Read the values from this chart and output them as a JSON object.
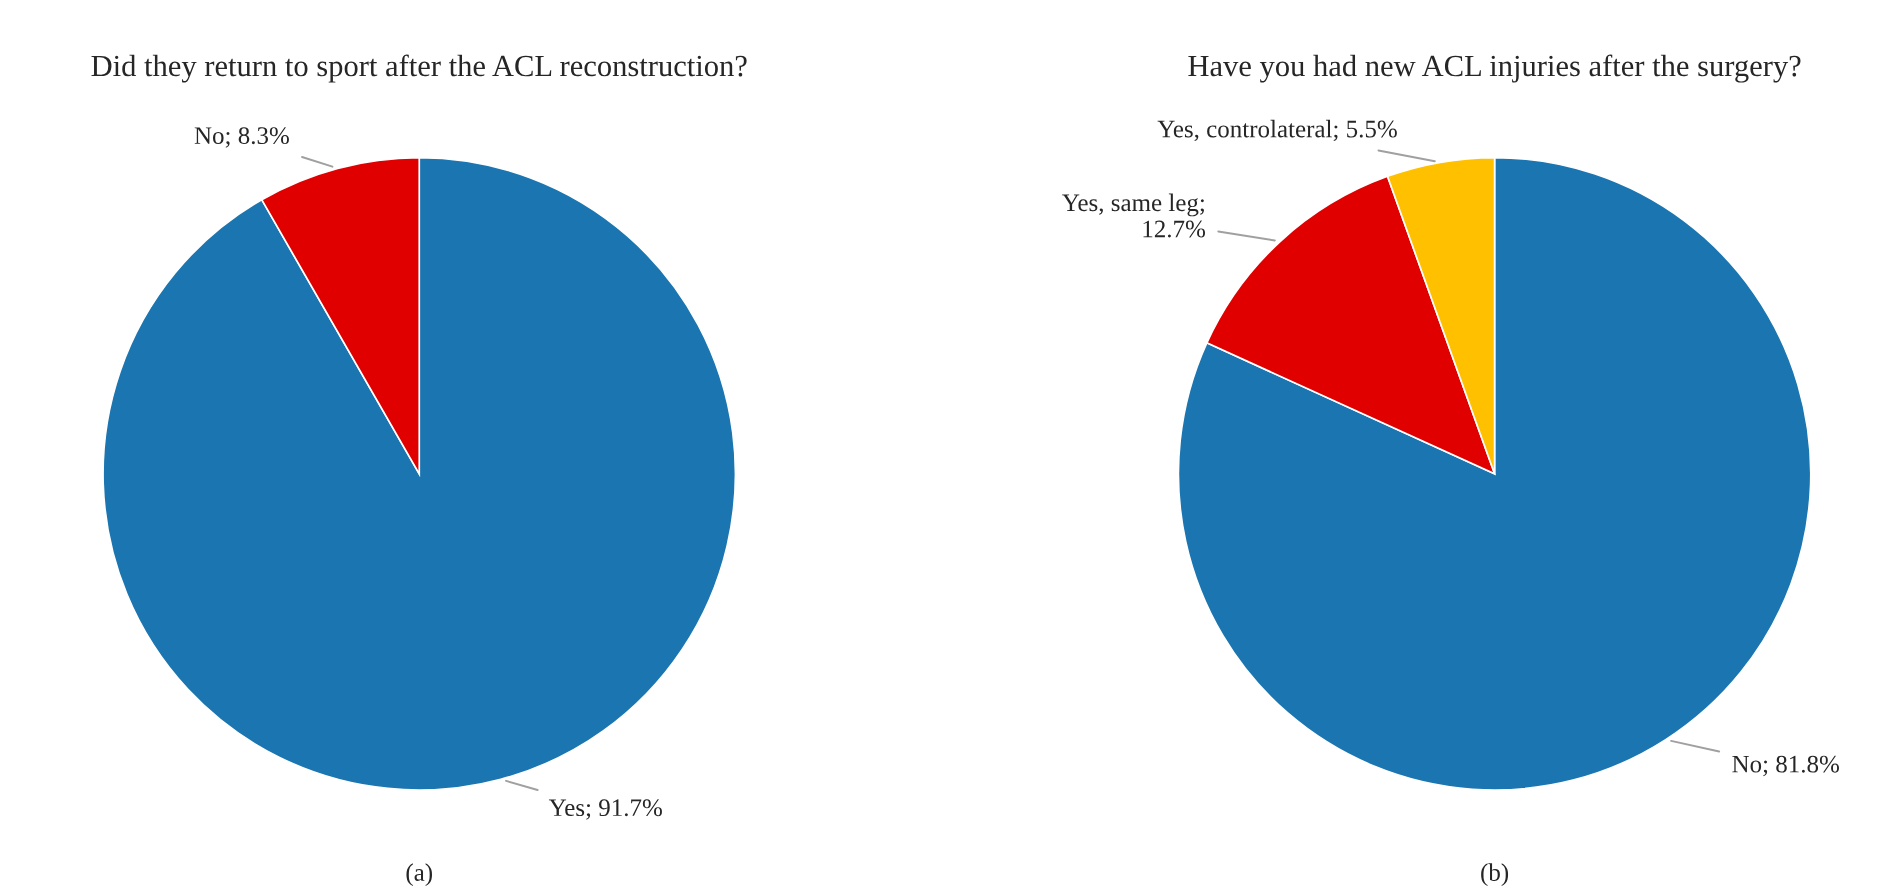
{
  "chart_data": [
    {
      "type": "pie",
      "title": "Did they return to sport after the ACL reconstruction?",
      "categories": [
        "Yes",
        "No"
      ],
      "values": [
        91.7,
        8.3
      ],
      "colors": [
        "#1a75b0",
        "#e00000"
      ],
      "value_labels": [
        "; 91.7%",
        "; 8.3%"
      ],
      "annotations": [
        "(a)"
      ]
    },
    {
      "type": "pie",
      "title": "Have you had new ACL injuries after the surgery?",
      "categories": [
        "No",
        "Yes, same leg",
        "Yes, controlateral"
      ],
      "values": [
        81.8,
        12.7,
        5.5
      ],
      "colors": [
        "#1a75b0",
        "#e00000",
        "#ffc000"
      ],
      "value_labels": [
        "; 81.8%",
        ";\n12.7%",
        "; 5.5%"
      ],
      "annotations": [
        "(b)"
      ]
    }
  ]
}
